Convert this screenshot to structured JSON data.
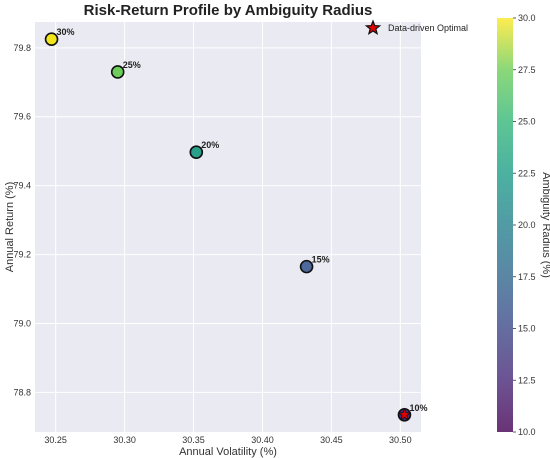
{
  "chart_data": {
    "type": "scatter",
    "title": "Risk-Return Profile by Ambiguity Radius",
    "xlabel": "Annual Volatility (%)",
    "ylabel": "Annual Return (%)",
    "xlim": [
      30.235,
      30.515
    ],
    "ylim": [
      78.685,
      79.875
    ],
    "xticks": [
      30.25,
      30.3,
      30.35,
      30.4,
      30.45,
      30.5
    ],
    "xtick_labels": [
      "30.25",
      "30.30",
      "30.35",
      "30.40",
      "30.45",
      "30.50"
    ],
    "yticks": [
      78.8,
      79.0,
      79.2,
      79.4,
      79.6,
      79.8
    ],
    "ytick_labels": [
      "78.8",
      "79.0",
      "79.2",
      "79.4",
      "79.6",
      "79.8"
    ],
    "grid": true,
    "points": [
      {
        "x": 30.247,
        "y": 79.825,
        "radius": 30,
        "label": "30%",
        "color": "#f2e51c"
      },
      {
        "x": 30.295,
        "y": 79.73,
        "radius": 25,
        "label": "25%",
        "color": "#6ccd5a"
      },
      {
        "x": 30.352,
        "y": 79.497,
        "radius": 20,
        "label": "20%",
        "color": "#2a9f8a"
      },
      {
        "x": 30.432,
        "y": 79.165,
        "radius": 15,
        "label": "15%",
        "color": "#4d689a"
      },
      {
        "x": 30.503,
        "y": 78.735,
        "radius": 10,
        "label": "10%",
        "color": "#4b2b7a"
      }
    ],
    "optimal": {
      "x": 30.503,
      "y": 78.735
    },
    "legend": {
      "position": "top-right",
      "entries": [
        "Data-driven Optimal"
      ]
    },
    "colorbar": {
      "label": "Ambiguity Radius (%)",
      "range": [
        10.0,
        30.0
      ],
      "ticks": [
        10.0,
        12.5,
        15.0,
        17.5,
        20.0,
        22.5,
        25.0,
        27.5,
        30.0
      ],
      "tick_labels": [
        "10.0",
        "12.5",
        "15.0",
        "17.5",
        "20.0",
        "22.5",
        "25.0",
        "27.5",
        "30.0"
      ],
      "colormap": "viridis"
    },
    "colors": {
      "plot_background": "#eaeaf2",
      "grid": "#ffffff",
      "star_fill": "#e00000",
      "marker_edge": "#111111"
    }
  }
}
